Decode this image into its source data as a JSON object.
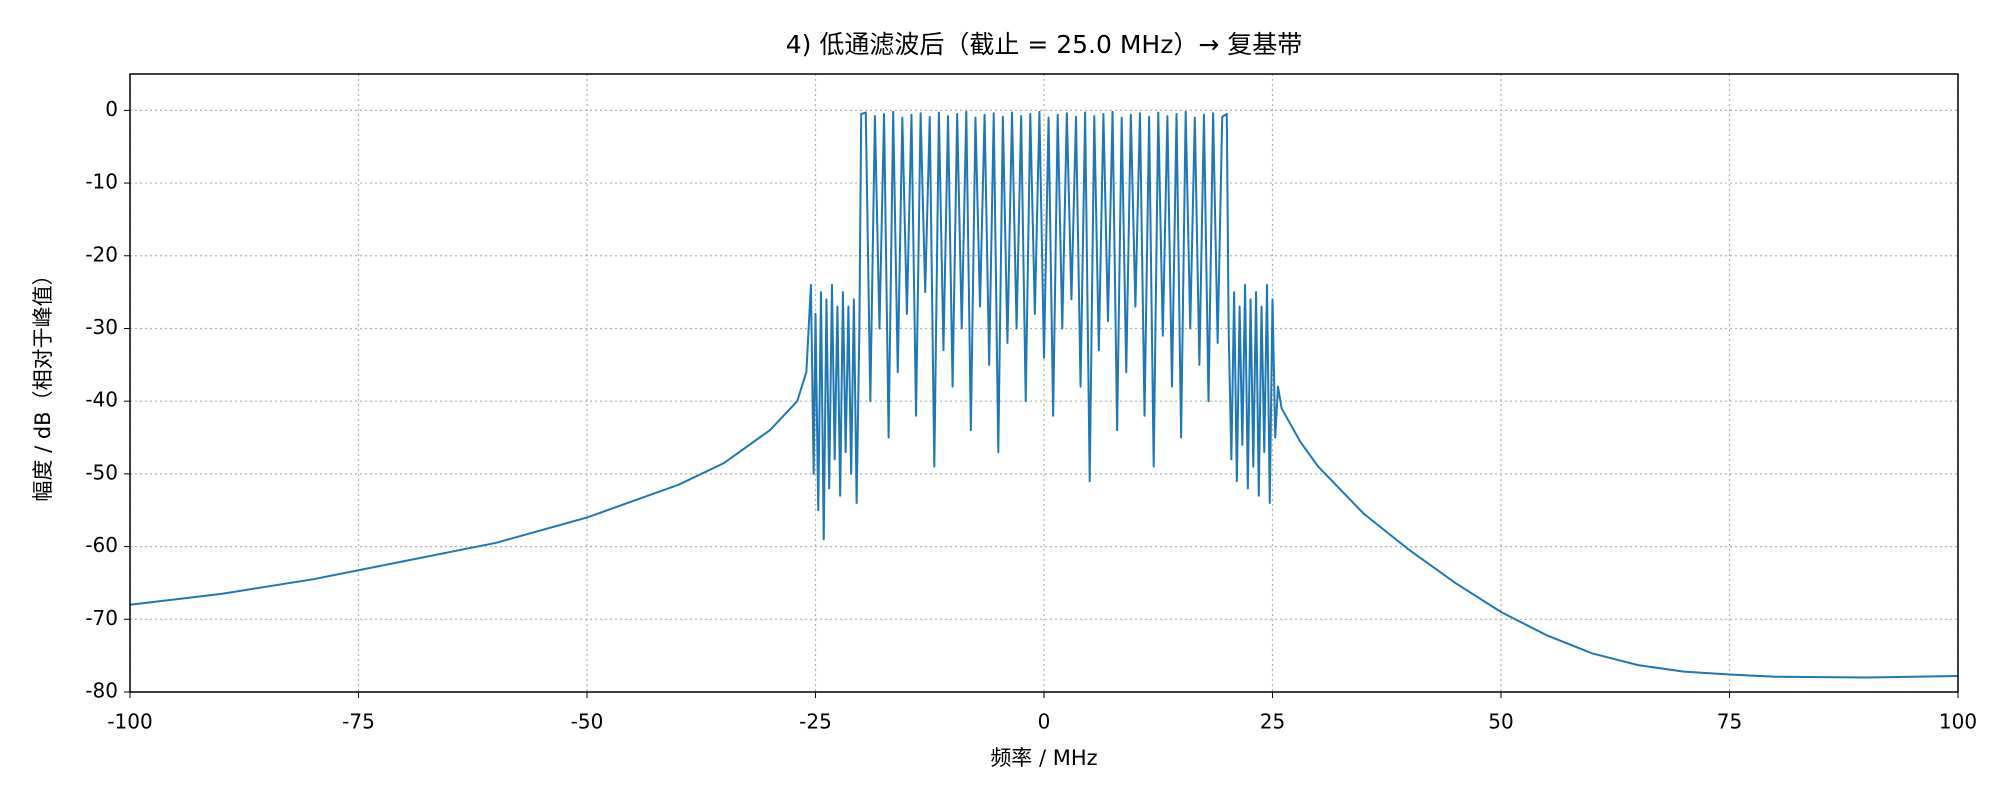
{
  "chart_data": {
    "type": "line",
    "title": "4) 低通滤波后（截止 = 25.0 MHz）→ 复基带",
    "x_label": "频率 / MHz",
    "y_label": "幅度 / dB（相对于峰值）",
    "xlim": [
      -100,
      100
    ],
    "xticks": [
      -100,
      -75,
      -50,
      -25,
      0,
      25,
      50,
      75,
      100
    ],
    "ylim": [
      -80,
      5
    ],
    "yticks": [
      -80,
      -70,
      -60,
      -50,
      -40,
      -30,
      -20,
      -10,
      0
    ],
    "grid": true,
    "series": [
      {
        "color": "#1f77b4",
        "x": [
          -100,
          -90,
          -80,
          -70,
          -60,
          -50,
          -40,
          -35,
          -30,
          -27,
          -26,
          -25.5,
          -25.2,
          -25,
          -24.7,
          -24.4,
          -24.1,
          -23.8,
          -23.5,
          -23.2,
          -22.9,
          -22.6,
          -22.3,
          -22,
          -21.7,
          -21.4,
          -21.1,
          -20.8,
          -20.5,
          -20.2,
          -20,
          -19.5,
          -19,
          -18.5,
          -18,
          -17.5,
          -17,
          -16.5,
          -16,
          -15.5,
          -15,
          -14.5,
          -14,
          -13.5,
          -13,
          -12.5,
          -12,
          -11.5,
          -11,
          -10.5,
          -10,
          -9.5,
          -9,
          -8.5,
          -8,
          -7.5,
          -7,
          -6.5,
          -6,
          -5.5,
          -5,
          -4.5,
          -4,
          -3.5,
          -3,
          -2.5,
          -2,
          -1.5,
          -1,
          -0.5,
          0,
          0.5,
          1,
          1.5,
          2,
          2.5,
          3,
          3.5,
          4,
          4.5,
          5,
          5.5,
          6,
          6.5,
          7,
          7.5,
          8,
          8.5,
          9,
          9.5,
          10,
          10.5,
          11,
          11.5,
          12,
          12.5,
          13,
          13.5,
          14,
          14.5,
          15,
          15.5,
          16,
          16.5,
          17,
          17.5,
          18,
          18.5,
          19,
          19.5,
          20,
          20.2,
          20.5,
          20.8,
          21.1,
          21.4,
          21.7,
          22,
          22.3,
          22.6,
          22.9,
          23.2,
          23.5,
          23.8,
          24.1,
          24.4,
          24.7,
          25,
          25.3,
          25.6,
          26,
          28,
          30,
          35,
          40,
          45,
          50,
          55,
          60,
          65,
          70,
          75,
          80,
          90,
          100
        ],
        "values": [
          -68,
          -66.5,
          -64.5,
          -62,
          -59.5,
          -56,
          -51.5,
          -48.5,
          -44,
          -40,
          -36,
          -24,
          -50,
          -28,
          -55,
          -25,
          -59,
          -26,
          -52,
          -24,
          -48,
          -27,
          -53,
          -25,
          -47,
          -27,
          -50,
          -26,
          -54,
          -30,
          -0.5,
          -0.3,
          -40,
          -0.8,
          -30,
          -0.5,
          -45,
          -0.2,
          -36,
          -1.0,
          -28,
          -0.6,
          -42,
          -0.4,
          -25,
          -0.9,
          -49,
          -0.3,
          -33,
          -0.8,
          -38,
          -0.5,
          -30,
          -0.2,
          -44,
          -1.0,
          -27,
          -0.6,
          -35,
          -0.4,
          -47,
          -0.9,
          -32,
          -0.3,
          -30,
          -0.8,
          -40,
          -0.5,
          -28,
          -0.2,
          -34,
          -1.0,
          -42,
          -0.6,
          -30,
          -0.4,
          -26,
          -0.9,
          -38,
          -0.3,
          -51,
          -0.8,
          -33,
          -0.5,
          -29,
          -0.2,
          -44,
          -1.0,
          -36,
          -0.6,
          -27,
          -0.4,
          -42,
          -0.9,
          -49,
          -0.3,
          -31,
          -0.8,
          -38,
          -0.5,
          -45,
          -0.2,
          -30,
          -1.0,
          -35,
          -0.6,
          -40,
          -0.4,
          -32,
          -0.9,
          -0.5,
          -30,
          -48,
          -25,
          -51,
          -27,
          -46,
          -24,
          -52,
          -26,
          -49,
          -25,
          -53,
          -27,
          -47,
          -24,
          -54,
          -26,
          -45,
          -38,
          -41,
          -45.5,
          -49,
          -55.5,
          -60.5,
          -65,
          -69,
          -72.2,
          -74.7,
          -76.3,
          -77.2,
          -77.6,
          -77.9,
          -78,
          -77.8
        ]
      }
    ]
  }
}
